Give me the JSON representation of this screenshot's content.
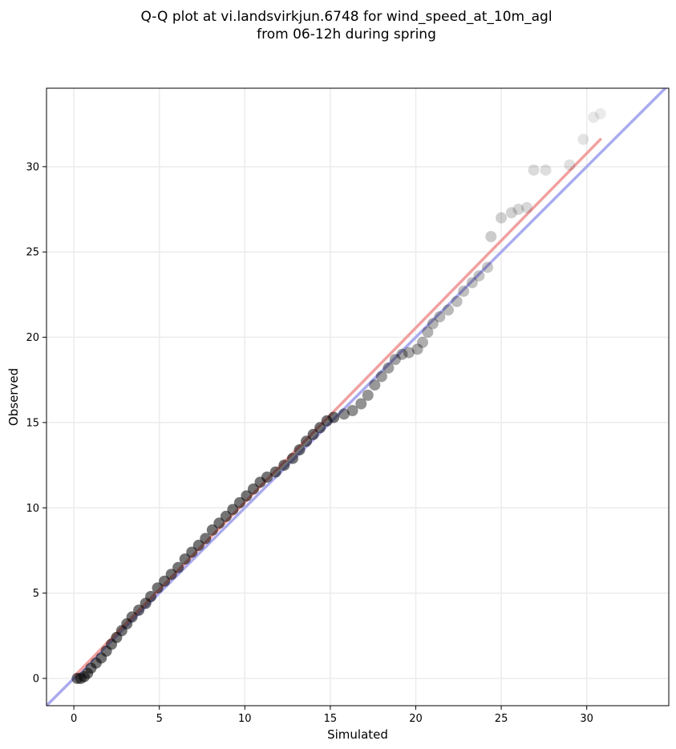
{
  "chart_data": {
    "type": "scatter",
    "title_lines": [
      "Q-Q plot at vi.landsvirkjun.6748 for wind_speed_at_10m_agl",
      "from 06-12h during spring"
    ],
    "xlabel": "Simulated",
    "ylabel": "Observed",
    "xlim": [
      -1.6,
      34.8
    ],
    "ylim": [
      -1.6,
      34.6
    ],
    "xticks": [
      0,
      5,
      10,
      15,
      20,
      25,
      30
    ],
    "yticks": [
      0,
      5,
      10,
      15,
      20,
      25,
      30
    ],
    "grid": true,
    "identity_line": {
      "color": "#aaaaee",
      "from": -1.6,
      "to": 34.8
    },
    "fit_line": {
      "color": "#f0a0a0",
      "x": [
        0.1,
        30.8
      ],
      "y": [
        0.2,
        31.6
      ]
    },
    "marker_color": "#000000",
    "dense_points": [
      [
        0.2,
        0.0
      ],
      [
        0.4,
        0.0
      ],
      [
        0.6,
        0.1
      ],
      [
        0.8,
        0.3
      ],
      [
        1.0,
        0.6
      ],
      [
        1.3,
        0.9
      ],
      [
        1.6,
        1.2
      ],
      [
        1.9,
        1.6
      ],
      [
        2.2,
        2.0
      ],
      [
        2.5,
        2.4
      ],
      [
        2.8,
        2.8
      ],
      [
        3.1,
        3.2
      ],
      [
        3.4,
        3.6
      ],
      [
        3.8,
        4.0
      ],
      [
        4.2,
        4.4
      ],
      [
        4.5,
        4.8
      ],
      [
        4.9,
        5.3
      ],
      [
        5.3,
        5.7
      ],
      [
        5.7,
        6.1
      ],
      [
        6.1,
        6.5
      ],
      [
        6.5,
        7.0
      ],
      [
        6.9,
        7.4
      ],
      [
        7.3,
        7.8
      ],
      [
        7.7,
        8.2
      ],
      [
        8.1,
        8.7
      ],
      [
        8.5,
        9.1
      ],
      [
        8.9,
        9.5
      ],
      [
        9.3,
        9.9
      ],
      [
        9.7,
        10.3
      ],
      [
        10.1,
        10.7
      ],
      [
        10.5,
        11.1
      ],
      [
        10.9,
        11.5
      ],
      [
        11.3,
        11.8
      ],
      [
        11.8,
        12.1
      ],
      [
        12.3,
        12.5
      ],
      [
        12.8,
        12.9
      ],
      [
        13.2,
        13.4
      ],
      [
        13.6,
        13.9
      ],
      [
        14.0,
        14.3
      ],
      [
        14.4,
        14.7
      ],
      [
        14.8,
        15.1
      ],
      [
        15.2,
        15.3
      ]
    ],
    "sparse_points": [
      [
        15.8,
        15.5
      ],
      [
        16.3,
        15.7
      ],
      [
        16.8,
        16.1
      ],
      [
        17.2,
        16.6
      ],
      [
        17.6,
        17.2
      ],
      [
        18.0,
        17.7
      ],
      [
        18.4,
        18.2
      ],
      [
        18.8,
        18.7
      ],
      [
        19.2,
        19.0
      ],
      [
        19.6,
        19.1
      ],
      [
        20.1,
        19.3
      ],
      [
        20.4,
        19.7
      ],
      [
        20.7,
        20.3
      ],
      [
        21.0,
        20.8
      ],
      [
        21.4,
        21.2
      ],
      [
        21.9,
        21.6
      ],
      [
        22.4,
        22.1
      ],
      [
        22.8,
        22.7
      ],
      [
        23.3,
        23.2
      ],
      [
        23.7,
        23.6
      ],
      [
        24.2,
        24.1
      ],
      [
        24.4,
        25.9
      ],
      [
        25.0,
        27.0
      ],
      [
        25.6,
        27.3
      ],
      [
        26.0,
        27.5
      ],
      [
        26.5,
        27.6
      ],
      [
        26.9,
        29.8
      ],
      [
        27.6,
        29.8
      ],
      [
        29.0,
        30.1
      ],
      [
        29.8,
        31.6
      ],
      [
        30.4,
        32.9
      ],
      [
        30.8,
        33.1
      ]
    ]
  }
}
